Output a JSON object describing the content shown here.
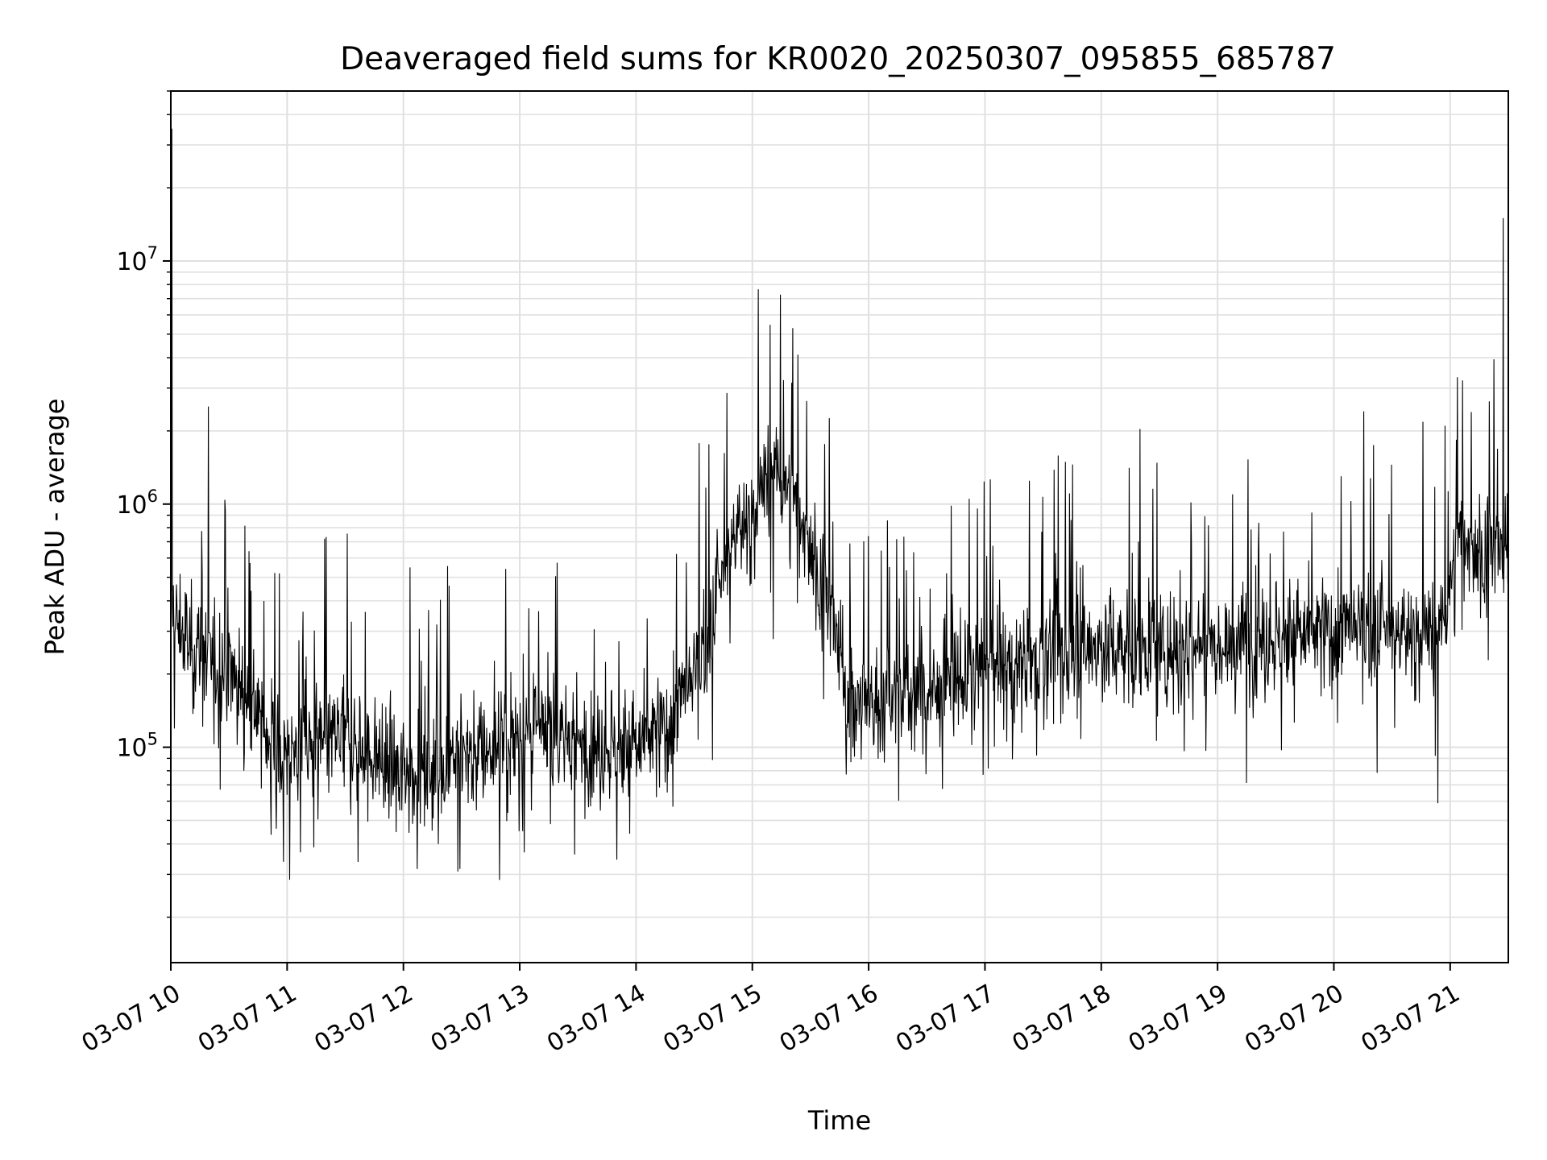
{
  "chart_data": {
    "type": "line",
    "title": "Deaveraged field sums for KR0020_20250307_095855_685787",
    "xlabel": "Time",
    "ylabel": "Peak ADU - average",
    "yscale": "log",
    "grid": true,
    "line_color": "#000000",
    "grid_color": "#e0e0e0",
    "x_tick_labels": [
      "03-07 10",
      "03-07 11",
      "03-07 12",
      "03-07 13",
      "03-07 14",
      "03-07 15",
      "03-07 16",
      "03-07 17",
      "03-07 18",
      "03-07 19",
      "03-07 20",
      "03-07 21"
    ],
    "y_ticks": [
      {
        "base": "10",
        "exp": "5",
        "value": 100000
      },
      {
        "base": "10",
        "exp": "6",
        "value": 1000000
      },
      {
        "base": "10",
        "exp": "7",
        "value": 10000000
      }
    ],
    "xlim": [
      "2025-03-07 10:00",
      "2025-03-07 21:30"
    ],
    "ylim": [
      13000,
      50000000
    ],
    "series": [
      {
        "x": [
          "2025-03-07 10:00",
          "2025-03-07 10:10",
          "2025-03-07 10:20",
          "2025-03-07 10:30",
          "2025-03-07 10:40",
          "2025-03-07 10:50",
          "2025-03-07 11:00",
          "2025-03-07 11:15",
          "2025-03-07 11:30",
          "2025-03-07 11:45",
          "2025-03-07 12:00",
          "2025-03-07 12:15",
          "2025-03-07 12:30",
          "2025-03-07 12:45",
          "2025-03-07 13:00",
          "2025-03-07 13:15",
          "2025-03-07 13:30",
          "2025-03-07 13:45",
          "2025-03-07 14:00",
          "2025-03-07 14:15",
          "2025-03-07 14:30",
          "2025-03-07 14:40",
          "2025-03-07 14:50",
          "2025-03-07 15:00",
          "2025-03-07 15:10",
          "2025-03-07 15:20",
          "2025-03-07 15:30",
          "2025-03-07 15:40",
          "2025-03-07 15:50",
          "2025-03-07 16:00",
          "2025-03-07 16:30",
          "2025-03-07 17:00",
          "2025-03-07 17:30",
          "2025-03-07 18:00",
          "2025-03-07 18:30",
          "2025-03-07 19:00",
          "2025-03-07 19:30",
          "2025-03-07 20:00",
          "2025-03-07 20:30",
          "2025-03-07 20:55",
          "2025-03-07 21:05",
          "2025-03-07 21:15",
          "2025-03-07 21:30"
        ],
        "values": [
          350000,
          260000,
          230000,
          210000,
          170000,
          110000,
          95000,
          100000,
          110000,
          90000,
          80000,
          85000,
          95000,
          100000,
          110000,
          115000,
          105000,
          100000,
          100000,
          120000,
          190000,
          350000,
          750000,
          900000,
          1400000,
          1100000,
          700000,
          350000,
          160000,
          150000,
          170000,
          210000,
          240000,
          260000,
          250000,
          280000,
          280000,
          300000,
          300000,
          290000,
          750000,
          650000,
          600000
        ]
      }
    ]
  }
}
